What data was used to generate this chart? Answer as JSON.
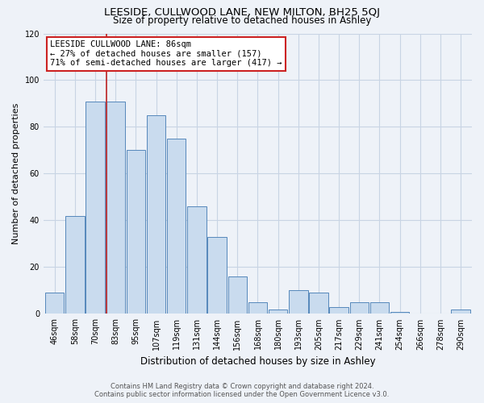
{
  "title": "LEESIDE, CULLWOOD LANE, NEW MILTON, BH25 5QJ",
  "subtitle": "Size of property relative to detached houses in Ashley",
  "xlabel": "Distribution of detached houses by size in Ashley",
  "ylabel": "Number of detached properties",
  "categories": [
    "46sqm",
    "58sqm",
    "70sqm",
    "83sqm",
    "95sqm",
    "107sqm",
    "119sqm",
    "131sqm",
    "144sqm",
    "156sqm",
    "168sqm",
    "180sqm",
    "193sqm",
    "205sqm",
    "217sqm",
    "229sqm",
    "241sqm",
    "254sqm",
    "266sqm",
    "278sqm",
    "290sqm"
  ],
  "values": [
    9,
    42,
    91,
    91,
    70,
    85,
    75,
    46,
    33,
    16,
    5,
    2,
    10,
    9,
    3,
    5,
    5,
    1,
    0,
    0,
    2
  ],
  "bar_color": "#c9dbee",
  "bar_edge_color": "#5588bb",
  "vline_color": "#bb2222",
  "annotation_lines": [
    "LEESIDE CULLWOOD LANE: 86sqm",
    "← 27% of detached houses are smaller (157)",
    "71% of semi-detached houses are larger (417) →"
  ],
  "annotation_box_color": "white",
  "annotation_box_edge_color": "#cc2222",
  "ylim": [
    0,
    120
  ],
  "yticks": [
    0,
    20,
    40,
    60,
    80,
    100,
    120
  ],
  "grid_color": "#c8d4e4",
  "background_color": "#eef2f8",
  "footer_line1": "Contains HM Land Registry data © Crown copyright and database right 2024.",
  "footer_line2": "Contains public sector information licensed under the Open Government Licence v3.0."
}
